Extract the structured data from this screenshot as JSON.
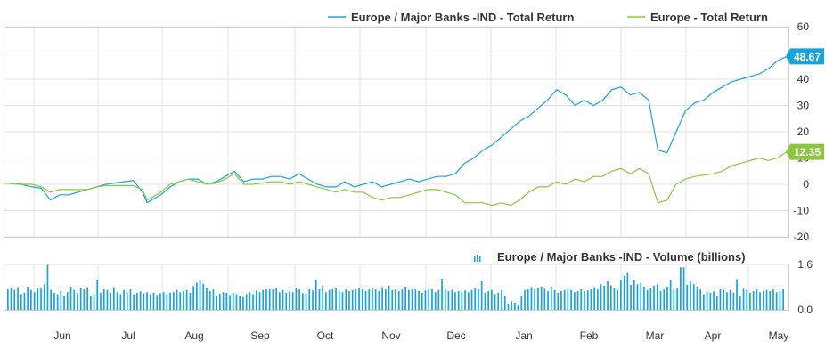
{
  "chart_data": [
    {
      "type": "line",
      "legend_placement": "top-right",
      "grid": true,
      "x_tick_labels": [
        "Jun",
        "Jul",
        "Aug",
        "Sep",
        "Oct",
        "Nov",
        "Dec",
        "Jan",
        "Feb",
        "Mar",
        "Apr",
        "May"
      ],
      "ylim": [
        -20,
        60
      ],
      "y_ticks": [
        "-20",
        "-10",
        "0",
        "10",
        "20",
        "30",
        "40",
        "50",
        "60"
      ],
      "series": [
        {
          "name": "Europe / Major Banks -IND - Total Return",
          "color": "#1aa3d9",
          "last_value_label": "48.67",
          "points": [
            [
              0,
              0.5
            ],
            [
              0.3,
              0.2
            ],
            [
              0.6,
              -1
            ],
            [
              0.8,
              -1.5
            ],
            [
              1.0,
              -6
            ],
            [
              1.2,
              -4
            ],
            [
              1.4,
              -4
            ],
            [
              1.6,
              -3
            ],
            [
              1.8,
              -2
            ],
            [
              2.0,
              -1
            ],
            [
              2.2,
              0
            ],
            [
              2.4,
              0.5
            ],
            [
              2.6,
              1
            ],
            [
              2.8,
              1.5
            ],
            [
              3.0,
              -3
            ],
            [
              3.1,
              -7
            ],
            [
              3.2,
              -6
            ],
            [
              3.4,
              -4
            ],
            [
              3.6,
              -1
            ],
            [
              3.8,
              1
            ],
            [
              4.0,
              2
            ],
            [
              4.2,
              2
            ],
            [
              4.4,
              0
            ],
            [
              4.6,
              1
            ],
            [
              4.8,
              3
            ],
            [
              5.0,
              5
            ],
            [
              5.2,
              1
            ],
            [
              5.4,
              2
            ],
            [
              5.6,
              2
            ],
            [
              5.8,
              3
            ],
            [
              6.0,
              3
            ],
            [
              6.2,
              2
            ],
            [
              6.4,
              4
            ],
            [
              6.6,
              2
            ],
            [
              6.8,
              0
            ],
            [
              7.0,
              -1
            ],
            [
              7.2,
              -1
            ],
            [
              7.4,
              1
            ],
            [
              7.6,
              -1
            ],
            [
              7.8,
              0
            ],
            [
              8.0,
              1
            ],
            [
              8.2,
              -1
            ],
            [
              8.4,
              0
            ],
            [
              8.6,
              1
            ],
            [
              8.8,
              2
            ],
            [
              9.0,
              1
            ],
            [
              9.2,
              2
            ],
            [
              9.4,
              3
            ],
            [
              9.6,
              3
            ],
            [
              9.8,
              4
            ],
            [
              10.0,
              8
            ],
            [
              10.2,
              10
            ],
            [
              10.4,
              13
            ],
            [
              10.6,
              15
            ],
            [
              10.8,
              18
            ],
            [
              11.0,
              21
            ],
            [
              11.2,
              24
            ],
            [
              11.4,
              26
            ],
            [
              11.6,
              29
            ],
            [
              11.8,
              32
            ],
            [
              12.0,
              36
            ],
            [
              12.2,
              34
            ],
            [
              12.4,
              30
            ],
            [
              12.6,
              32
            ],
            [
              12.8,
              30
            ],
            [
              13.0,
              32
            ],
            [
              13.2,
              36
            ],
            [
              13.4,
              37
            ],
            [
              13.6,
              34
            ],
            [
              13.8,
              35
            ],
            [
              14.0,
              32
            ],
            [
              14.2,
              13
            ],
            [
              14.4,
              12
            ],
            [
              14.6,
              20
            ],
            [
              14.8,
              28
            ],
            [
              15.0,
              31
            ],
            [
              15.2,
              32
            ],
            [
              15.4,
              35
            ],
            [
              15.6,
              37
            ],
            [
              15.8,
              39
            ],
            [
              16.0,
              40
            ],
            [
              16.2,
              41
            ],
            [
              16.4,
              42
            ],
            [
              16.6,
              44
            ],
            [
              16.8,
              47
            ],
            [
              17.0,
              48.67
            ]
          ]
        },
        {
          "name": "Europe - Total Return",
          "color": "#8cc63f",
          "last_value_label": "12.35",
          "points": [
            [
              0,
              0.5
            ],
            [
              0.3,
              0
            ],
            [
              0.6,
              0
            ],
            [
              0.8,
              -1
            ],
            [
              1.0,
              -3
            ],
            [
              1.2,
              -2
            ],
            [
              1.4,
              -2
            ],
            [
              1.6,
              -2
            ],
            [
              1.8,
              -2
            ],
            [
              2.0,
              -1
            ],
            [
              2.2,
              -0.5
            ],
            [
              2.4,
              -0.5
            ],
            [
              2.6,
              -0.5
            ],
            [
              2.8,
              -0.5
            ],
            [
              3.0,
              -2
            ],
            [
              3.1,
              -6
            ],
            [
              3.2,
              -5
            ],
            [
              3.4,
              -3
            ],
            [
              3.6,
              0
            ],
            [
              3.8,
              1
            ],
            [
              4.0,
              2
            ],
            [
              4.2,
              1
            ],
            [
              4.4,
              0
            ],
            [
              4.6,
              0.5
            ],
            [
              4.8,
              2
            ],
            [
              5.0,
              4
            ],
            [
              5.2,
              0
            ],
            [
              5.4,
              0
            ],
            [
              5.6,
              0.5
            ],
            [
              5.8,
              1
            ],
            [
              6.0,
              1
            ],
            [
              6.2,
              0
            ],
            [
              6.4,
              1
            ],
            [
              6.6,
              0
            ],
            [
              6.8,
              -1
            ],
            [
              7.0,
              -2
            ],
            [
              7.2,
              -3
            ],
            [
              7.4,
              -2
            ],
            [
              7.6,
              -3
            ],
            [
              7.8,
              -3
            ],
            [
              8.0,
              -5
            ],
            [
              8.2,
              -6
            ],
            [
              8.4,
              -5
            ],
            [
              8.6,
              -5
            ],
            [
              8.8,
              -4
            ],
            [
              9.0,
              -3
            ],
            [
              9.2,
              -2
            ],
            [
              9.4,
              -2
            ],
            [
              9.6,
              -3
            ],
            [
              9.8,
              -4
            ],
            [
              10.0,
              -7
            ],
            [
              10.2,
              -7
            ],
            [
              10.4,
              -7
            ],
            [
              10.6,
              -8
            ],
            [
              10.8,
              -7
            ],
            [
              11.0,
              -8
            ],
            [
              11.2,
              -6
            ],
            [
              11.4,
              -3
            ],
            [
              11.6,
              -1
            ],
            [
              11.8,
              -1
            ],
            [
              12.0,
              1
            ],
            [
              12.2,
              0
            ],
            [
              12.4,
              2
            ],
            [
              12.6,
              1
            ],
            [
              12.8,
              3
            ],
            [
              13.0,
              3
            ],
            [
              13.2,
              5
            ],
            [
              13.4,
              6
            ],
            [
              13.6,
              4
            ],
            [
              13.8,
              6
            ],
            [
              14.0,
              4
            ],
            [
              14.2,
              -7
            ],
            [
              14.4,
              -6
            ],
            [
              14.6,
              0
            ],
            [
              14.8,
              2
            ],
            [
              15.0,
              3
            ],
            [
              15.2,
              3.5
            ],
            [
              15.4,
              4
            ],
            [
              15.6,
              5
            ],
            [
              15.8,
              7
            ],
            [
              16.0,
              8
            ],
            [
              16.2,
              9
            ],
            [
              16.4,
              10
            ],
            [
              16.6,
              9
            ],
            [
              16.8,
              10
            ],
            [
              17.0,
              12.35
            ]
          ]
        }
      ]
    },
    {
      "type": "bar",
      "legend_placement": "top-right",
      "grid": true,
      "ylim": [
        0,
        1.6
      ],
      "y_ticks": [
        "1.6",
        "0.0"
      ],
      "series": [
        {
          "name": "Europe / Major Banks -IND - Volume (billions)",
          "color": "#1aa3d9",
          "values": [
            0.72,
            0.75,
            0.7,
            0.8,
            0.55,
            0.6,
            0.82,
            0.7,
            0.62,
            0.78,
            0.74,
            0.9,
            1.58,
            0.7,
            0.6,
            0.55,
            0.66,
            0.5,
            0.62,
            0.82,
            0.7,
            0.6,
            0.76,
            0.72,
            0.8,
            0.5,
            0.55,
            1.06,
            0.6,
            0.72,
            0.7,
            0.6,
            0.8,
            0.62,
            0.55,
            0.7,
            0.6,
            0.72,
            0.55,
            0.6,
            0.65,
            0.58,
            0.62,
            0.55,
            0.6,
            0.52,
            0.58,
            0.62,
            0.55,
            0.6,
            0.62,
            0.7,
            0.62,
            0.66,
            0.7,
            0.6,
            0.84,
            0.95,
            1.05,
            0.92,
            0.78,
            0.66,
            0.72,
            0.5,
            0.56,
            0.62,
            0.6,
            0.52,
            0.6,
            0.55,
            0.5,
            0.45,
            0.55,
            0.62,
            0.55,
            0.68,
            0.62,
            0.7,
            0.72,
            0.72,
            0.72,
            0.75,
            0.62,
            0.7,
            0.6,
            0.66,
            0.62,
            0.78,
            0.72,
            0.58,
            0.56,
            0.72,
            0.68,
            1.04,
            0.72,
            0.85,
            0.62,
            0.7,
            0.72,
            0.75,
            0.65,
            0.62,
            0.72,
            0.66,
            0.7,
            0.72,
            0.75,
            0.72,
            0.66,
            0.72,
            0.74,
            0.72,
            0.66,
            0.8,
            0.72,
            0.85,
            0.7,
            0.72,
            0.66,
            0.72,
            0.82,
            0.7,
            0.72,
            0.72,
            0.66,
            0.6,
            0.68,
            0.72,
            0.72,
            0.62,
            0.7,
            1.1,
            0.72,
            0.66,
            0.7,
            0.62,
            0.66,
            0.64,
            0.68,
            0.62,
            0.7,
            0.78,
            0.72,
            1.0,
            0.6,
            0.66,
            0.7,
            0.55,
            0.6,
            0.7,
            0.5,
            0.2,
            0.3,
            0.25,
            0.15,
            0.5,
            0.7,
            0.72,
            0.8,
            0.72,
            0.75,
            0.82,
            0.74,
            0.66,
            0.82,
            0.7,
            0.6,
            0.66,
            0.7,
            0.72,
            0.7,
            0.62,
            0.66,
            0.72,
            0.66,
            0.68,
            0.72,
            0.8,
            0.72,
            0.9,
            0.85,
            1.0,
            0.86,
            0.75,
            0.7,
            1.06,
            1.2,
            1.3,
            0.88,
            1.05,
            0.9,
            0.95,
            0.82,
            0.7,
            0.75,
            0.85,
            0.9,
            0.66,
            0.72,
            0.82,
            1.05,
            0.7,
            0.75,
            1.5,
            1.5,
            0.88,
            1.0,
            0.9,
            0.82,
            0.72,
            0.55,
            0.66,
            0.6,
            0.65,
            0.5,
            0.72,
            0.7,
            0.62,
            0.7,
            0.6,
            1.08,
            0.5,
            0.74,
            0.7,
            0.6,
            0.66,
            0.72,
            0.62,
            0.66,
            0.7,
            0.66,
            0.72,
            0.62,
            0.66,
            0.72
          ]
        }
      ]
    }
  ],
  "x_axis": {
    "months": [
      "Jun",
      "Jul",
      "Aug",
      "Sep",
      "Oct",
      "Nov",
      "Dec",
      "Jan",
      "Feb",
      "Mar",
      "Apr",
      "May"
    ]
  }
}
